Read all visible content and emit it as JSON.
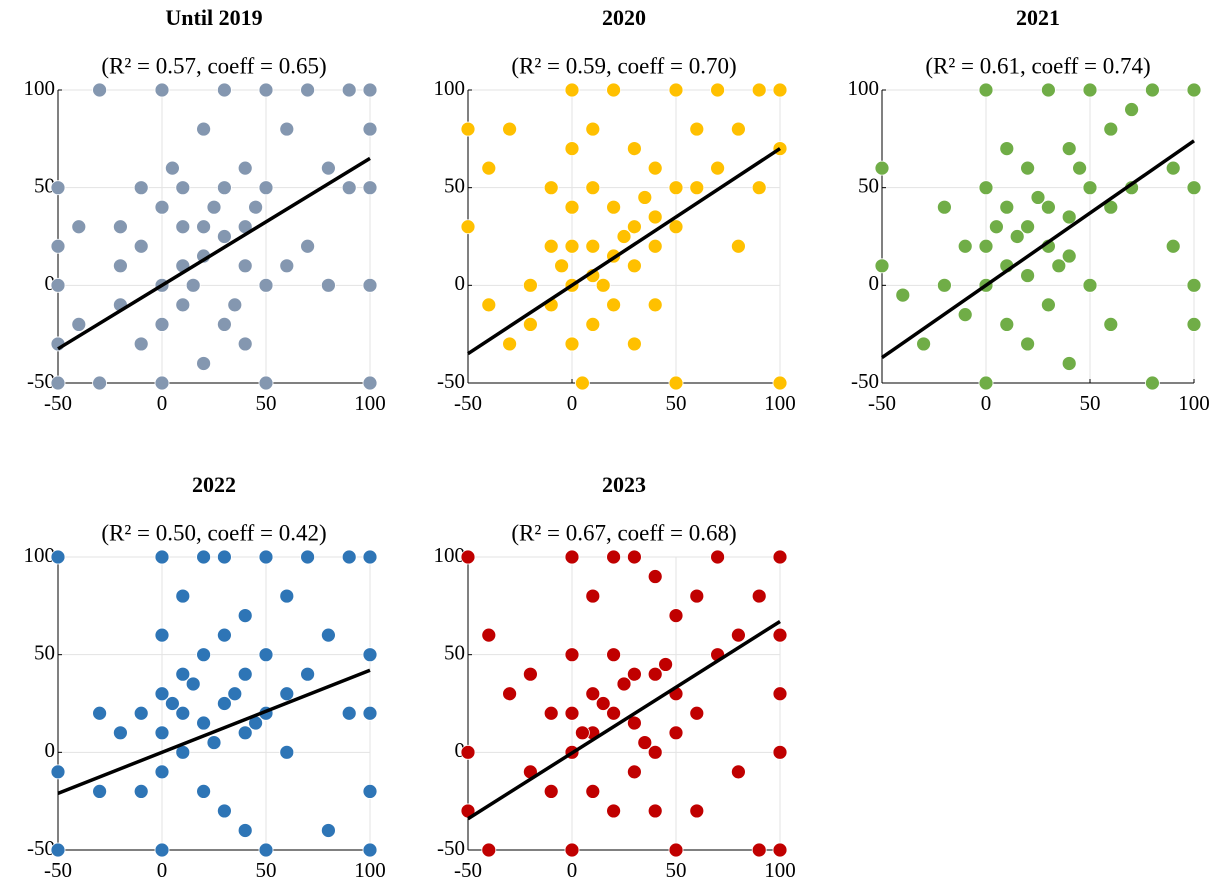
{
  "chart_data": [
    {
      "type": "scatter",
      "title": "Until 2019",
      "subtitle": "(R² = 0.57, coeff = 0.65)",
      "color": "#8497b0",
      "x": [
        -50,
        -50,
        -50,
        -50,
        -50,
        -40,
        -40,
        -30,
        -30,
        -20,
        -20,
        -20,
        -10,
        -10,
        -10,
        0,
        0,
        0,
        0,
        0,
        10,
        10,
        10,
        10,
        20,
        20,
        20,
        20,
        30,
        30,
        30,
        30,
        40,
        40,
        40,
        40,
        50,
        50,
        50,
        50,
        60,
        60,
        70,
        70,
        80,
        80,
        90,
        90,
        100,
        100,
        100,
        100,
        100,
        5,
        15,
        25,
        35,
        45
      ],
      "y": [
        50,
        20,
        0,
        -30,
        -50,
        30,
        -20,
        100,
        -50,
        30,
        10,
        -10,
        50,
        20,
        -30,
        100,
        40,
        0,
        -20,
        -50,
        50,
        30,
        10,
        -10,
        80,
        30,
        15,
        -40,
        100,
        50,
        25,
        -20,
        60,
        30,
        10,
        -30,
        100,
        50,
        0,
        -50,
        80,
        10,
        100,
        20,
        60,
        0,
        100,
        50,
        100,
        80,
        50,
        0,
        -50,
        60,
        0,
        40,
        -10,
        40
      ],
      "fit": {
        "x": [
          -50,
          100
        ],
        "y": [
          -32.5,
          65
        ],
        "color": "#000000"
      },
      "xlim": [
        -50,
        100
      ],
      "ylim": [
        -50,
        100
      ],
      "xticks": [
        -50,
        0,
        50,
        100
      ],
      "yticks": [
        -50,
        0,
        50,
        100
      ],
      "grid": true
    },
    {
      "type": "scatter",
      "title": "2020",
      "subtitle": "(R² = 0.59, coeff = 0.70)",
      "color": "#ffc000",
      "x": [
        -50,
        -50,
        -40,
        -40,
        -30,
        -30,
        -20,
        -20,
        -10,
        -10,
        -10,
        0,
        0,
        0,
        0,
        0,
        0,
        10,
        10,
        10,
        10,
        10,
        20,
        20,
        20,
        20,
        30,
        30,
        30,
        30,
        40,
        40,
        40,
        40,
        50,
        50,
        50,
        50,
        60,
        60,
        70,
        70,
        80,
        80,
        90,
        90,
        100,
        100,
        100,
        -5,
        15,
        25,
        35,
        5
      ],
      "y": [
        80,
        30,
        60,
        -10,
        80,
        -30,
        0,
        -20,
        50,
        20,
        -10,
        100,
        70,
        40,
        20,
        0,
        -30,
        80,
        50,
        20,
        5,
        -20,
        100,
        40,
        15,
        -10,
        70,
        30,
        10,
        -30,
        60,
        35,
        20,
        -10,
        100,
        50,
        30,
        -50,
        80,
        50,
        100,
        60,
        80,
        20,
        50,
        100,
        100,
        70,
        -50,
        10,
        0,
        25,
        45,
        -50
      ],
      "fit": {
        "x": [
          -50,
          100
        ],
        "y": [
          -35,
          70
        ],
        "color": "#000000"
      },
      "xlim": [
        -50,
        100
      ],
      "ylim": [
        -50,
        100
      ],
      "xticks": [
        -50,
        0,
        50,
        100
      ],
      "yticks": [
        -50,
        0,
        50,
        100
      ],
      "grid": true
    },
    {
      "type": "scatter",
      "title": "2021",
      "subtitle": "(R² = 0.61, coeff = 0.74)",
      "color": "#70ad47",
      "x": [
        -50,
        -50,
        -40,
        -30,
        -20,
        -20,
        -10,
        -10,
        0,
        0,
        0,
        0,
        0,
        10,
        10,
        10,
        10,
        20,
        20,
        20,
        20,
        30,
        30,
        30,
        30,
        40,
        40,
        40,
        40,
        50,
        50,
        50,
        60,
        60,
        60,
        70,
        70,
        80,
        80,
        90,
        90,
        100,
        100,
        100,
        100,
        5,
        15,
        25,
        35,
        45
      ],
      "y": [
        60,
        10,
        -5,
        -30,
        40,
        0,
        20,
        -15,
        100,
        50,
        20,
        0,
        -50,
        70,
        40,
        10,
        -20,
        60,
        30,
        5,
        -30,
        100,
        40,
        20,
        -10,
        70,
        35,
        15,
        -40,
        100,
        50,
        0,
        80,
        40,
        -20,
        90,
        50,
        100,
        -50,
        60,
        20,
        100,
        50,
        0,
        -20,
        30,
        25,
        45,
        10,
        60
      ],
      "fit": {
        "x": [
          -50,
          100
        ],
        "y": [
          -37,
          74
        ],
        "color": "#000000"
      },
      "xlim": [
        -50,
        100
      ],
      "ylim": [
        -50,
        100
      ],
      "xticks": [
        -50,
        0,
        50,
        100
      ],
      "yticks": [
        -50,
        0,
        50,
        100
      ],
      "grid": true
    },
    {
      "type": "scatter",
      "title": "2022",
      "subtitle": "(R² = 0.50, coeff = 0.42)",
      "color": "#2e75b6",
      "x": [
        -50,
        -50,
        -50,
        -30,
        -30,
        -20,
        -10,
        -10,
        0,
        0,
        0,
        0,
        0,
        0,
        10,
        10,
        10,
        10,
        20,
        20,
        20,
        20,
        30,
        30,
        30,
        30,
        40,
        40,
        40,
        40,
        50,
        50,
        50,
        50,
        60,
        60,
        60,
        70,
        70,
        80,
        80,
        90,
        90,
        100,
        100,
        100,
        100,
        100,
        5,
        15,
        25,
        35,
        45
      ],
      "y": [
        100,
        -10,
        -50,
        20,
        -20,
        10,
        20,
        -20,
        100,
        60,
        30,
        10,
        -10,
        -50,
        80,
        40,
        20,
        0,
        100,
        50,
        15,
        -20,
        100,
        60,
        25,
        -30,
        70,
        40,
        10,
        -40,
        100,
        50,
        20,
        -50,
        80,
        30,
        0,
        100,
        40,
        60,
        -40,
        100,
        20,
        100,
        50,
        20,
        -20,
        -50,
        25,
        35,
        5,
        30,
        15
      ],
      "fit": {
        "x": [
          -50,
          100
        ],
        "y": [
          -21,
          42
        ],
        "color": "#000000"
      },
      "xlim": [
        -50,
        100
      ],
      "ylim": [
        -50,
        100
      ],
      "xticks": [
        -50,
        0,
        50,
        100
      ],
      "yticks": [
        -50,
        0,
        50,
        100
      ],
      "grid": true
    },
    {
      "type": "scatter",
      "title": "2023",
      "subtitle": "(R² = 0.67, coeff = 0.68)",
      "color": "#c00000",
      "x": [
        -50,
        -50,
        -50,
        -40,
        -40,
        -30,
        -20,
        -20,
        -10,
        -10,
        0,
        0,
        0,
        0,
        0,
        10,
        10,
        10,
        10,
        20,
        20,
        20,
        20,
        30,
        30,
        30,
        30,
        40,
        40,
        40,
        40,
        50,
        50,
        50,
        50,
        60,
        60,
        60,
        70,
        70,
        80,
        80,
        90,
        90,
        100,
        100,
        100,
        100,
        100,
        5,
        15,
        25,
        35,
        45
      ],
      "y": [
        100,
        0,
        -30,
        60,
        -50,
        30,
        40,
        -10,
        20,
        -20,
        100,
        50,
        20,
        0,
        -50,
        80,
        30,
        10,
        -20,
        100,
        50,
        20,
        -30,
        100,
        40,
        15,
        -10,
        90,
        40,
        0,
        -30,
        70,
        30,
        10,
        -50,
        80,
        20,
        -30,
        100,
        50,
        60,
        -10,
        80,
        -50,
        100,
        60,
        30,
        0,
        -50,
        10,
        25,
        35,
        5,
        45
      ],
      "fit": {
        "x": [
          -50,
          100
        ],
        "y": [
          -34,
          67
        ],
        "color": "#000000"
      },
      "xlim": [
        -50,
        100
      ],
      "ylim": [
        -50,
        100
      ],
      "xticks": [
        -50,
        0,
        50,
        100
      ],
      "yticks": [
        -50,
        0,
        50,
        100
      ],
      "grid": true
    }
  ]
}
